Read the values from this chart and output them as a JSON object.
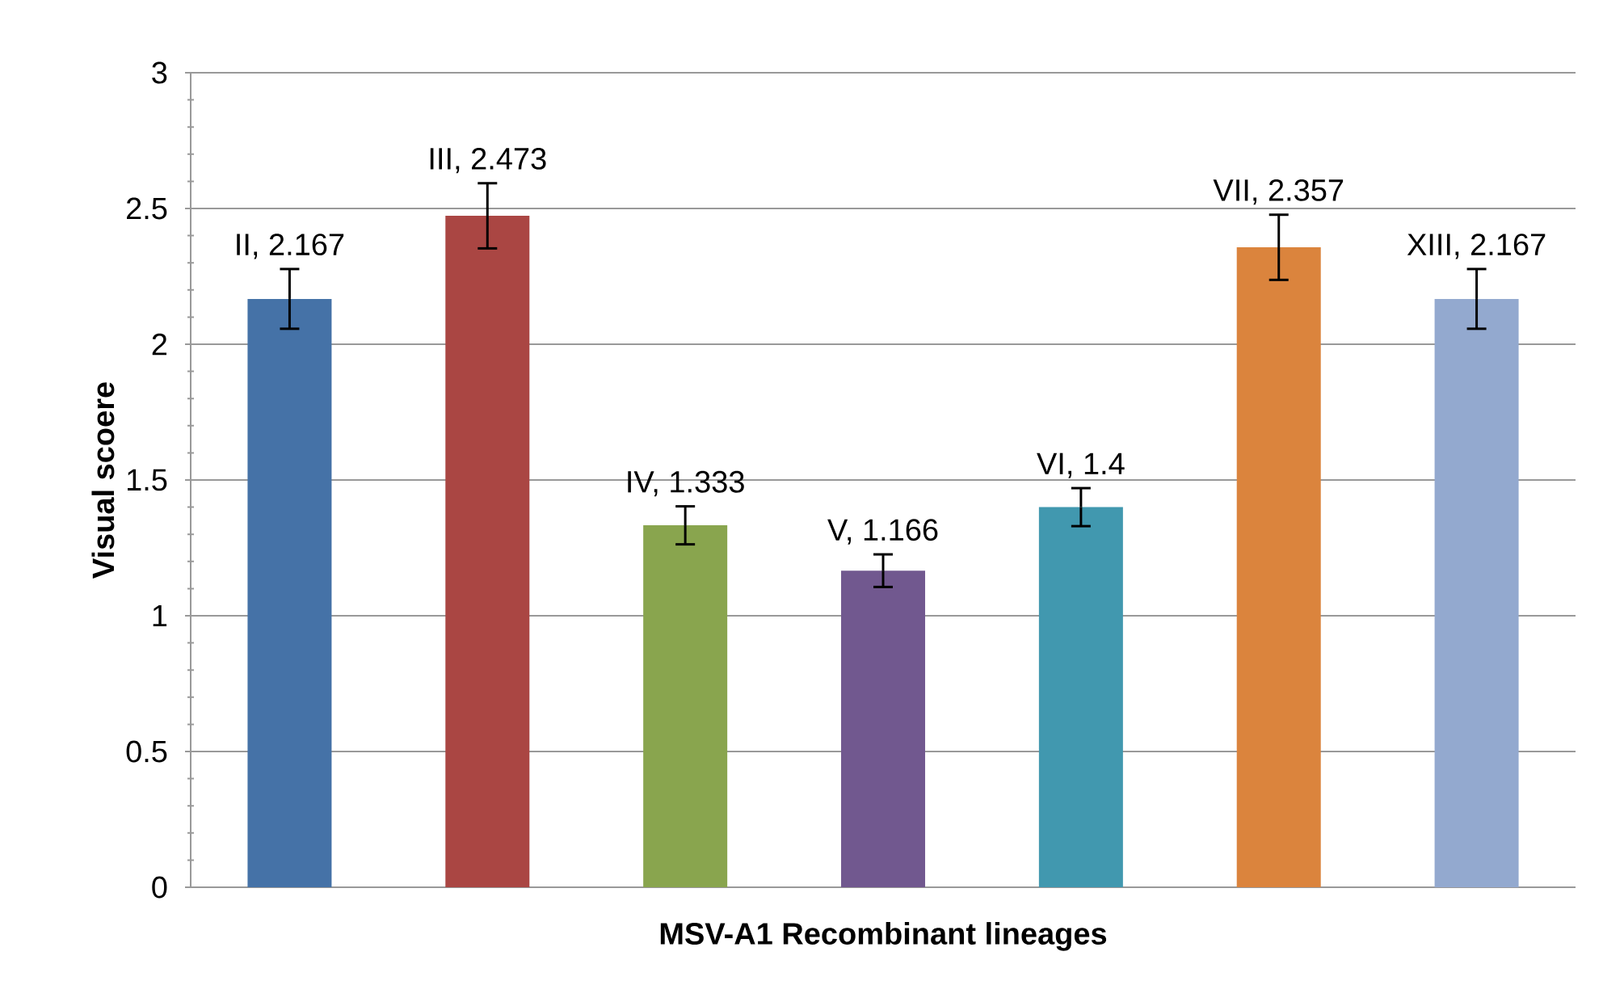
{
  "chart_data": {
    "type": "bar",
    "xlabel": "MSV-A1 Recombinant lineages",
    "ylabel": "Visual scoere",
    "categories": [
      null,
      null,
      null,
      null,
      null,
      null,
      null
    ],
    "values": [
      2.167,
      2.473,
      1.333,
      1.166,
      1.4,
      2.357,
      2.167
    ],
    "errors": [
      0.11,
      0.12,
      0.07,
      0.06,
      0.07,
      0.12,
      0.11
    ],
    "value_labels": [
      "II, 2.167",
      "III, 2.473",
      "IV, 1.333",
      "V, 1.166",
      "VI, 1.4",
      "VII, 2.357",
      "XIII, 2.167"
    ],
    "colors": [
      "#4572a7",
      "#aa4643",
      "#89a54e",
      "#71588f",
      "#4198af",
      "#db843d",
      "#93a9cf"
    ],
    "ylim": [
      0,
      3
    ],
    "yticks": [
      0,
      0.5,
      1,
      1.5,
      2,
      2.5,
      3
    ],
    "grid": "y"
  }
}
